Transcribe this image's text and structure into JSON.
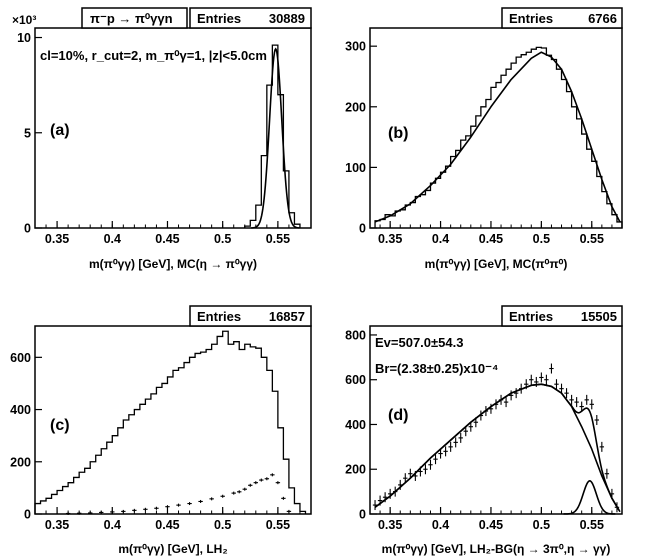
{
  "header": {
    "reaction": "π⁻p → π⁰γγn",
    "y_multiplier": "×10³"
  },
  "chart_data": [
    {
      "type": "histogram",
      "panel_label": "(a)",
      "entries_label": "Entries",
      "entries": "30889",
      "annotation": "cl=10%, r_cut=2, m_π⁰γ=1, |z|<5.0cm",
      "xlabel": "m(π⁰γγ) [GeV], MC(η → π⁰γγ)",
      "xlim": [
        0.33,
        0.58
      ],
      "ylim": [
        0,
        10.5
      ],
      "yticks": [
        "0",
        "5",
        "10"
      ],
      "xticks": [
        "0.35",
        "0.4",
        "0.45",
        "0.5",
        "0.55"
      ],
      "bin_edges": [
        0.52,
        0.525,
        0.53,
        0.535,
        0.54,
        0.545,
        0.55,
        0.555,
        0.56,
        0.565,
        0.57
      ],
      "histogram": [
        0.1,
        0.4,
        1.2,
        3.8,
        7.5,
        9.6,
        7.0,
        3.0,
        0.8,
        0.2
      ],
      "fit": {
        "type": "gaussian",
        "amplitude": 9.4,
        "mean": 0.548,
        "sigma": 0.0055
      }
    },
    {
      "type": "histogram",
      "panel_label": "(b)",
      "entries_label": "Entries",
      "entries": "6766",
      "xlabel": "m(π⁰γγ) [GeV], MC(π⁰π⁰)",
      "xlim": [
        0.33,
        0.58
      ],
      "ylim": [
        0,
        330
      ],
      "yticks": [
        "0",
        "100",
        "200",
        "300"
      ],
      "xticks": [
        "0.35",
        "0.4",
        "0.45",
        "0.5",
        "0.55"
      ],
      "bin_edges": [
        0.335,
        0.34,
        0.345,
        0.35,
        0.355,
        0.36,
        0.365,
        0.37,
        0.375,
        0.38,
        0.385,
        0.39,
        0.395,
        0.4,
        0.405,
        0.41,
        0.415,
        0.42,
        0.425,
        0.43,
        0.435,
        0.44,
        0.445,
        0.45,
        0.455,
        0.46,
        0.465,
        0.47,
        0.475,
        0.48,
        0.485,
        0.49,
        0.495,
        0.5,
        0.505,
        0.51,
        0.515,
        0.52,
        0.525,
        0.53,
        0.535,
        0.54,
        0.545,
        0.55,
        0.555,
        0.56,
        0.565,
        0.57,
        0.575,
        0.58
      ],
      "histogram": [
        12,
        14,
        22,
        20,
        28,
        30,
        38,
        42,
        52,
        55,
        62,
        74,
        82,
        92,
        102,
        118,
        128,
        145,
        152,
        168,
        185,
        200,
        212,
        232,
        240,
        252,
        262,
        272,
        282,
        286,
        290,
        295,
        298,
        297,
        285,
        278,
        262,
        245,
        225,
        200,
        180,
        155,
        130,
        110,
        85,
        60,
        40,
        22,
        10
      ],
      "fit": {
        "type": "polynomial",
        "x": [
          0.335,
          0.35,
          0.37,
          0.39,
          0.41,
          0.43,
          0.45,
          0.47,
          0.49,
          0.5,
          0.51,
          0.52,
          0.53,
          0.54,
          0.55,
          0.56,
          0.57,
          0.578
        ],
        "y": [
          10,
          20,
          40,
          70,
          105,
          150,
          200,
          245,
          280,
          290,
          282,
          262,
          225,
          180,
          130,
          80,
          35,
          10
        ]
      }
    },
    {
      "type": "histogram",
      "panel_label": "(c)",
      "entries_label": "Entries",
      "entries": "16857",
      "xlabel": "m(π⁰γγ) [GeV],  LH₂",
      "xlim": [
        0.33,
        0.58
      ],
      "ylim": [
        0,
        720
      ],
      "yticks": [
        "0",
        "200",
        "400",
        "600"
      ],
      "xticks": [
        "0.35",
        "0.4",
        "0.45",
        "0.5",
        "0.55"
      ],
      "bin_edges": [
        0.33,
        0.335,
        0.34,
        0.345,
        0.35,
        0.355,
        0.36,
        0.365,
        0.37,
        0.375,
        0.38,
        0.385,
        0.39,
        0.395,
        0.4,
        0.405,
        0.41,
        0.415,
        0.42,
        0.425,
        0.43,
        0.435,
        0.44,
        0.445,
        0.45,
        0.455,
        0.46,
        0.465,
        0.47,
        0.475,
        0.48,
        0.485,
        0.49,
        0.495,
        0.5,
        0.505,
        0.51,
        0.515,
        0.52,
        0.525,
        0.53,
        0.535,
        0.54,
        0.545,
        0.55,
        0.555,
        0.56,
        0.565,
        0.57,
        0.575
      ],
      "histogram": [
        40,
        50,
        60,
        75,
        90,
        105,
        120,
        140,
        160,
        175,
        200,
        225,
        250,
        275,
        300,
        330,
        360,
        380,
        400,
        420,
        440,
        460,
        485,
        500,
        525,
        550,
        560,
        580,
        600,
        615,
        620,
        630,
        650,
        680,
        700,
        650,
        660,
        630,
        650,
        640,
        635,
        600,
        550,
        470,
        330,
        210,
        100,
        40,
        10
      ],
      "points": {
        "x": [
          0.36,
          0.37,
          0.38,
          0.39,
          0.4,
          0.41,
          0.42,
          0.43,
          0.44,
          0.45,
          0.46,
          0.47,
          0.48,
          0.49,
          0.5,
          0.51,
          0.515,
          0.52,
          0.525,
          0.53,
          0.535,
          0.54,
          0.545,
          0.55,
          0.555,
          0.56
        ],
        "y": [
          2,
          3,
          4,
          6,
          8,
          10,
          14,
          18,
          22,
          28,
          34,
          40,
          48,
          58,
          68,
          80,
          85,
          95,
          110,
          120,
          130,
          135,
          150,
          120,
          60,
          10
        ]
      }
    },
    {
      "type": "histogram",
      "panel_label": "(d)",
      "entries_label": "Entries",
      "entries": "15505",
      "annotations": [
        "Ev=507.0±54.3",
        "Br=(2.38±0.25)x10⁻⁴"
      ],
      "xlabel": "m(π⁰γγ) [GeV], LH₂-BG(η → 3π⁰,η → γγ)",
      "xlim": [
        0.33,
        0.58
      ],
      "ylim": [
        0,
        840
      ],
      "yticks": [
        "0",
        "200",
        "400",
        "600",
        "800"
      ],
      "xticks": [
        "0.35",
        "0.4",
        "0.45",
        "0.5",
        "0.55"
      ],
      "points": {
        "x": [
          0.335,
          0.34,
          0.345,
          0.35,
          0.355,
          0.36,
          0.365,
          0.37,
          0.375,
          0.38,
          0.385,
          0.39,
          0.395,
          0.4,
          0.405,
          0.41,
          0.415,
          0.42,
          0.425,
          0.43,
          0.435,
          0.44,
          0.445,
          0.45,
          0.455,
          0.46,
          0.465,
          0.47,
          0.475,
          0.48,
          0.485,
          0.49,
          0.495,
          0.5,
          0.505,
          0.51,
          0.515,
          0.52,
          0.525,
          0.53,
          0.535,
          0.54,
          0.545,
          0.55,
          0.555,
          0.56,
          0.565,
          0.57,
          0.575
        ],
        "y": [
          40,
          60,
          75,
          90,
          100,
          130,
          160,
          180,
          170,
          190,
          200,
          220,
          245,
          270,
          280,
          300,
          320,
          340,
          370,
          390,
          410,
          440,
          460,
          470,
          490,
          510,
          500,
          530,
          540,
          560,
          580,
          600,
          590,
          610,
          600,
          650,
          580,
          560,
          540,
          510,
          500,
          480,
          510,
          490,
          420,
          300,
          180,
          90,
          30
        ]
      },
      "fit_background": {
        "x": [
          0.335,
          0.35,
          0.37,
          0.39,
          0.41,
          0.43,
          0.45,
          0.47,
          0.49,
          0.5,
          0.51,
          0.52,
          0.53,
          0.54,
          0.55,
          0.56,
          0.57,
          0.578
        ],
        "y": [
          30,
          80,
          160,
          250,
          330,
          410,
          480,
          540,
          575,
          580,
          570,
          540,
          480,
          390,
          290,
          170,
          70,
          10
        ]
      },
      "fit_signal": {
        "type": "gaussian",
        "amplitude": 148,
        "mean": 0.548,
        "sigma": 0.0065
      }
    }
  ]
}
